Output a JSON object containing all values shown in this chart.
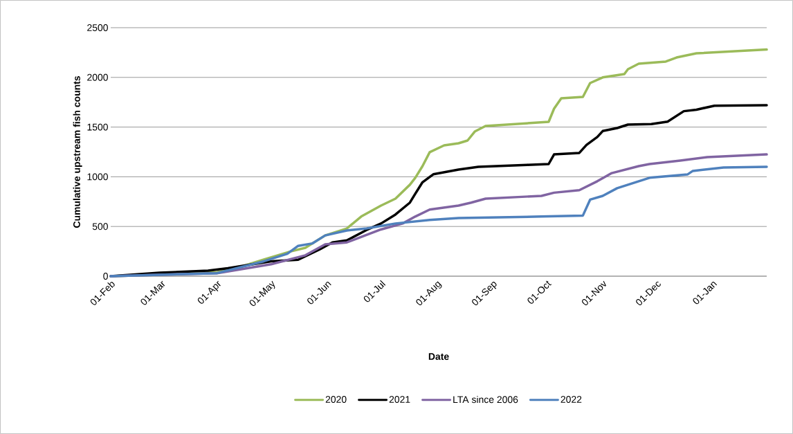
{
  "chart_data": {
    "type": "line",
    "xlabel": "Date",
    "ylabel": "Cumulative upstream fish counts",
    "xlim": [
      "2021-02-01",
      "2022-01-31"
    ],
    "xticks": [
      {
        "value": "2021-02-01",
        "label": "01-Feb"
      },
      {
        "value": "2021-03-01",
        "label": "01-Mar"
      },
      {
        "value": "2021-04-01",
        "label": "01-Apr"
      },
      {
        "value": "2021-05-01",
        "label": "01-May"
      },
      {
        "value": "2021-06-01",
        "label": "01-Jun"
      },
      {
        "value": "2021-07-01",
        "label": "01-Jul"
      },
      {
        "value": "2021-08-01",
        "label": "01-Aug"
      },
      {
        "value": "2021-09-01",
        "label": "01-Sep"
      },
      {
        "value": "2021-10-01",
        "label": "01-Oct"
      },
      {
        "value": "2021-11-01",
        "label": "01-Nov"
      },
      {
        "value": "2021-12-01",
        "label": "01-Dec"
      },
      {
        "value": "2022-01-01",
        "label": "01-Jan"
      }
    ],
    "ylim": [
      0,
      2500
    ],
    "yticks": [
      0,
      500,
      1000,
      1500,
      2000,
      2500
    ],
    "grid": "y",
    "legend": "bottom",
    "marker": "none",
    "line_style": "solid",
    "series": [
      {
        "name": "2020",
        "color": "#9bbb59",
        "x": [
          "2021-02-01",
          "2021-03-01",
          "2021-04-01",
          "2021-04-15",
          "2021-04-27",
          "2021-05-12",
          "2021-05-20",
          "2021-05-31",
          "2021-06-12",
          "2021-06-20",
          "2021-07-01",
          "2021-07-09",
          "2021-07-17",
          "2021-07-20",
          "2021-07-24",
          "2021-07-28",
          "2021-08-05",
          "2021-08-13",
          "2021-08-18",
          "2021-08-22",
          "2021-08-28",
          "2021-10-02",
          "2021-10-05",
          "2021-10-09",
          "2021-10-21",
          "2021-10-25",
          "2021-11-01",
          "2021-11-13",
          "2021-11-15",
          "2021-11-21",
          "2021-12-06",
          "2021-12-12",
          "2021-12-23",
          "2022-01-31"
        ],
        "values": [
          0,
          15,
          40,
          100,
          167,
          250,
          285,
          410,
          480,
          600,
          710,
          780,
          920,
          990,
          1107,
          1247,
          1316,
          1337,
          1365,
          1455,
          1511,
          1553,
          1685,
          1790,
          1804,
          1943,
          2000,
          2033,
          2082,
          2138,
          2159,
          2200,
          2242,
          2280
        ]
      },
      {
        "name": "2021",
        "color": "#000000",
        "x": [
          "2021-02-01",
          "2021-02-28",
          "2021-03-27",
          "2021-04-07",
          "2021-05-01",
          "2021-05-16",
          "2021-05-28",
          "2021-06-04",
          "2021-06-12",
          "2021-06-23",
          "2021-07-01",
          "2021-07-09",
          "2021-07-17",
          "2021-07-20",
          "2021-07-24",
          "2021-07-30",
          "2021-08-13",
          "2021-08-24",
          "2021-09-20",
          "2021-10-02",
          "2021-10-05",
          "2021-10-19",
          "2021-10-23",
          "2021-10-29",
          "2021-11-01",
          "2021-11-09",
          "2021-11-15",
          "2021-11-28",
          "2021-12-07",
          "2021-12-16",
          "2021-12-23",
          "2022-01-02",
          "2022-01-31"
        ],
        "values": [
          0,
          35,
          55,
          80,
          150,
          165,
          270,
          340,
          360,
          465,
          530,
          620,
          740,
          830,
          945,
          1025,
          1072,
          1100,
          1120,
          1128,
          1225,
          1240,
          1320,
          1400,
          1460,
          1490,
          1525,
          1530,
          1555,
          1660,
          1675,
          1715,
          1720
        ]
      },
      {
        "name": "LTA since 2006",
        "color": "#8064a2",
        "x": [
          "2021-02-01",
          "2021-04-01",
          "2021-05-01",
          "2021-05-20",
          "2021-05-31",
          "2021-06-12",
          "2021-07-01",
          "2021-07-13",
          "2021-07-20",
          "2021-07-28",
          "2021-08-13",
          "2021-08-20",
          "2021-08-28",
          "2021-09-28",
          "2021-10-05",
          "2021-10-19",
          "2021-10-29",
          "2021-11-06",
          "2021-11-21",
          "2021-11-27",
          "2021-12-14",
          "2021-12-29",
          "2022-01-31"
        ],
        "values": [
          0,
          30,
          120,
          210,
          320,
          340,
          470,
          530,
          600,
          670,
          710,
          740,
          780,
          808,
          840,
          865,
          955,
          1037,
          1107,
          1128,
          1163,
          1198,
          1225
        ]
      },
      {
        "name": "2022",
        "color": "#4f81bd",
        "x": [
          "2021-02-01",
          "2021-04-01",
          "2021-04-27",
          "2021-05-10",
          "2021-05-16",
          "2021-05-24",
          "2021-05-31",
          "2021-06-12",
          "2021-06-23",
          "2021-07-09",
          "2021-07-28",
          "2021-08-13",
          "2021-09-28",
          "2021-10-21",
          "2021-10-25",
          "2021-11-01",
          "2021-11-09",
          "2021-11-15",
          "2021-11-27",
          "2021-12-18",
          "2021-12-21",
          "2022-01-07",
          "2022-01-31"
        ],
        "values": [
          0,
          30,
          150,
          225,
          305,
          330,
          410,
          460,
          480,
          530,
          565,
          585,
          600,
          610,
          770,
          808,
          885,
          920,
          990,
          1023,
          1059,
          1093,
          1100
        ]
      }
    ]
  }
}
